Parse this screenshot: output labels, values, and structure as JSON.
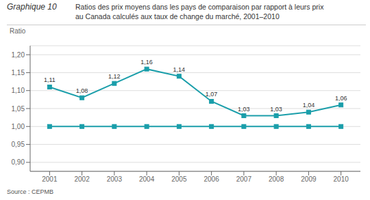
{
  "chart_data": {
    "type": "line",
    "title": "Graphique 10",
    "subtitle": "Ratios des prix moyens dans les pays de comparaison par rapport à leurs prix\nau Canada calculés aux taux de change du marché, 2001–2010",
    "ylabel": "Ratio",
    "source": "Source : CEPMB",
    "x": [
      2001,
      2002,
      2003,
      2004,
      2005,
      2006,
      2007,
      2008,
      2009,
      2010
    ],
    "xlim": [
      2000.4,
      2010.6
    ],
    "xticks": [
      2001,
      2002,
      2003,
      2004,
      2005,
      2006,
      2007,
      2008,
      2009,
      2010
    ],
    "ylim": [
      0.875,
      1.225
    ],
    "yticks": [
      {
        "value": 0.9,
        "label": "0,90"
      },
      {
        "value": 0.95,
        "label": "0,95"
      },
      {
        "value": 1.0,
        "label": "1,00"
      },
      {
        "value": 1.05,
        "label": "1,05"
      },
      {
        "value": 1.1,
        "label": "1,10"
      },
      {
        "value": 1.15,
        "label": "1,15"
      },
      {
        "value": 1.2,
        "label": "1,20"
      }
    ],
    "grid": true,
    "data_labels": true,
    "series": [
      {
        "color": "#1a9eaa",
        "marker": "square",
        "values": [
          1.11,
          1.08,
          1.12,
          1.16,
          1.14,
          1.07,
          1.03,
          1.03,
          1.04,
          1.06
        ],
        "value_labels": [
          "1,11",
          "1,08",
          "1,12",
          "1,16",
          "1,14",
          "1,07",
          "1,03",
          "1,03",
          "1,04",
          "1,06"
        ]
      },
      {
        "color": "#1a9eaa",
        "marker": "square",
        "values": [
          1.0,
          1.0,
          1.0,
          1.0,
          1.0,
          1.0,
          1.0,
          1.0,
          1.0,
          1.0
        ]
      }
    ]
  }
}
